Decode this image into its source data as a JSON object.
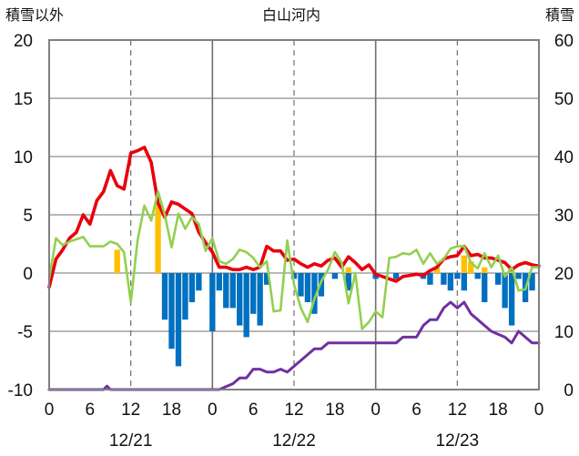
{
  "chart_data": {
    "type": "combo",
    "title": "白山河内",
    "y_left": {
      "label": "積雪以外",
      "range": [
        -10,
        20
      ],
      "ticks": [
        20,
        15,
        10,
        5,
        0,
        -5,
        -10
      ]
    },
    "y_right": {
      "label": "積雪",
      "range": [
        0,
        60
      ],
      "ticks": [
        60,
        50,
        40,
        30,
        20,
        10,
        0
      ]
    },
    "x": {
      "range_hours": [
        0,
        72
      ],
      "tick_labels": [
        "0",
        "6",
        "12",
        "18",
        "0",
        "6",
        "12",
        "18",
        "0",
        "6",
        "12",
        "18",
        "0"
      ],
      "dates": [
        {
          "label": "12/21",
          "center_hour": 12
        },
        {
          "label": "12/22",
          "center_hour": 36
        },
        {
          "label": "12/23",
          "center_hour": 60
        }
      ],
      "dashed_grid_hours": [
        12,
        36,
        60
      ],
      "solid_grid_hours": [
        24,
        48
      ]
    },
    "grid": true,
    "legend": "none",
    "colors": {
      "red_line": "#e8000b",
      "green_line": "#92d050",
      "purple_line": "#7030a0",
      "blue_bar": "#0070c0",
      "orange_bar": "#ffc000"
    },
    "series": [
      {
        "axis": "left",
        "type": "line",
        "color": "red",
        "points": [
          [
            0,
            -1.2
          ],
          [
            1,
            1.2
          ],
          [
            2,
            2
          ],
          [
            3,
            3
          ],
          [
            4,
            3.5
          ],
          [
            5,
            5
          ],
          [
            6,
            4.2
          ],
          [
            7,
            6.2
          ],
          [
            8,
            7
          ],
          [
            9,
            8.8
          ],
          [
            10,
            7.5
          ],
          [
            11,
            7.2
          ],
          [
            12,
            10.3
          ],
          [
            13,
            10.5
          ],
          [
            14,
            10.8
          ],
          [
            15,
            9.5
          ],
          [
            16,
            6
          ],
          [
            17,
            4.8
          ],
          [
            18,
            6.1
          ],
          [
            19,
            5.9
          ],
          [
            20,
            5.5
          ],
          [
            21,
            5.1
          ],
          [
            22,
            3.5
          ],
          [
            23,
            2.6
          ],
          [
            24,
            1.8
          ],
          [
            25,
            0.5
          ],
          [
            26,
            0.5
          ],
          [
            27,
            0.3
          ],
          [
            28,
            0.3
          ],
          [
            29,
            0.5
          ],
          [
            30,
            0.3
          ],
          [
            31,
            0.5
          ],
          [
            32,
            2.3
          ],
          [
            33,
            1.9
          ],
          [
            34,
            1.9
          ],
          [
            35,
            1.1
          ],
          [
            36,
            1.2
          ],
          [
            37,
            0.8
          ],
          [
            38,
            0.5
          ],
          [
            39,
            0.8
          ],
          [
            40,
            0.6
          ],
          [
            41,
            1.1
          ],
          [
            42,
            1.3
          ],
          [
            43,
            0.5
          ],
          [
            44,
            1.4
          ],
          [
            45,
            0.9
          ],
          [
            46,
            0.3
          ],
          [
            47,
            0.7
          ],
          [
            48,
            -0.1
          ],
          [
            49,
            -0.3
          ],
          [
            50,
            -0.5
          ],
          [
            51,
            -0.7
          ],
          [
            52,
            -0.3
          ],
          [
            53,
            -0.2
          ],
          [
            54,
            -0.1
          ],
          [
            55,
            -0.2
          ],
          [
            56,
            0.2
          ],
          [
            57,
            0.5
          ],
          [
            58,
            1.2
          ],
          [
            59,
            1.4
          ],
          [
            60,
            1.5
          ],
          [
            61,
            2.3
          ],
          [
            62,
            1.5
          ],
          [
            63,
            1.6
          ],
          [
            64,
            1.3
          ],
          [
            65,
            1.3
          ],
          [
            66,
            1.1
          ],
          [
            67,
            0.9
          ],
          [
            68,
            0.3
          ],
          [
            69,
            0.7
          ],
          [
            70,
            0.9
          ],
          [
            71,
            0.7
          ],
          [
            72,
            0.6
          ]
        ]
      },
      {
        "axis": "left",
        "type": "line",
        "color": "green",
        "points": [
          [
            0,
            -0.5
          ],
          [
            1,
            3
          ],
          [
            2,
            2.4
          ],
          [
            3,
            2.7
          ],
          [
            4,
            2.9
          ],
          [
            5,
            3.1
          ],
          [
            6,
            2.3
          ],
          [
            7,
            2.3
          ],
          [
            8,
            2.3
          ],
          [
            9,
            2.7
          ],
          [
            10,
            2.5
          ],
          [
            11,
            1.8
          ],
          [
            12,
            -2.5
          ],
          [
            13,
            2.8
          ],
          [
            14,
            5.8
          ],
          [
            15,
            4.5
          ],
          [
            16,
            7
          ],
          [
            17,
            5
          ],
          [
            18,
            2.2
          ],
          [
            19,
            5.1
          ],
          [
            20,
            3.8
          ],
          [
            21,
            4.8
          ],
          [
            22,
            4.2
          ],
          [
            23,
            1.9
          ],
          [
            24,
            3
          ],
          [
            25,
            1
          ],
          [
            26,
            0.8
          ],
          [
            27,
            1.2
          ],
          [
            28,
            2
          ],
          [
            29,
            1.8
          ],
          [
            30,
            1.3
          ],
          [
            31,
            0.5
          ],
          [
            32,
            1
          ],
          [
            33,
            -3.3
          ],
          [
            34,
            -3.2
          ],
          [
            35,
            2.8
          ],
          [
            36,
            -1
          ],
          [
            37,
            -3
          ],
          [
            38,
            -4.2
          ],
          [
            39,
            -2.2
          ],
          [
            40,
            -0.7
          ],
          [
            41,
            0.3
          ],
          [
            42,
            1.8
          ],
          [
            43,
            0.9
          ],
          [
            44,
            -2.6
          ],
          [
            45,
            0
          ],
          [
            46,
            -4.8
          ],
          [
            47,
            -4.2
          ],
          [
            48,
            -3.3
          ],
          [
            49,
            -3.8
          ],
          [
            50,
            1.3
          ],
          [
            51,
            1.4
          ],
          [
            52,
            1.7
          ],
          [
            53,
            1.6
          ],
          [
            54,
            2
          ],
          [
            55,
            0.8
          ],
          [
            56,
            1.7
          ],
          [
            57,
            0.8
          ],
          [
            58,
            1.2
          ],
          [
            59,
            2.1
          ],
          [
            60,
            2.3
          ],
          [
            61,
            2.3
          ],
          [
            62,
            0.9
          ],
          [
            63,
            0.4
          ],
          [
            64,
            1.7
          ],
          [
            65,
            0.5
          ],
          [
            66,
            1.5
          ],
          [
            67,
            -0.3
          ],
          [
            68,
            0.5
          ],
          [
            69,
            -1.5
          ],
          [
            70,
            -1.4
          ],
          [
            71,
            0.5
          ],
          [
            72,
            0.5
          ]
        ]
      },
      {
        "axis": "right",
        "type": "line",
        "color": "purple",
        "points": [
          [
            0,
            0
          ],
          [
            8,
            0
          ],
          [
            8.5,
            0.6
          ],
          [
            9,
            0
          ],
          [
            12,
            0
          ],
          [
            24,
            0
          ],
          [
            25,
            0
          ],
          [
            26,
            0.5
          ],
          [
            27,
            1
          ],
          [
            28,
            2
          ],
          [
            29,
            2
          ],
          [
            30,
            3.5
          ],
          [
            31,
            3.5
          ],
          [
            32,
            3
          ],
          [
            33,
            3
          ],
          [
            34,
            3.5
          ],
          [
            35,
            3
          ],
          [
            36,
            4
          ],
          [
            37,
            5
          ],
          [
            38,
            6
          ],
          [
            39,
            7
          ],
          [
            40,
            7
          ],
          [
            41,
            8
          ],
          [
            42,
            8
          ],
          [
            43,
            8
          ],
          [
            44,
            8
          ],
          [
            45,
            8
          ],
          [
            46,
            8
          ],
          [
            47,
            8
          ],
          [
            48,
            8
          ],
          [
            49,
            8
          ],
          [
            50,
            8
          ],
          [
            51,
            8
          ],
          [
            52,
            9
          ],
          [
            53,
            9
          ],
          [
            54,
            9
          ],
          [
            55,
            11
          ],
          [
            56,
            12
          ],
          [
            57,
            12
          ],
          [
            58,
            14
          ],
          [
            59,
            15
          ],
          [
            60,
            14
          ],
          [
            61,
            15
          ],
          [
            62,
            13
          ],
          [
            63,
            12
          ],
          [
            64,
            11
          ],
          [
            65,
            10
          ],
          [
            66,
            9.5
          ],
          [
            67,
            9
          ],
          [
            68,
            8
          ],
          [
            69,
            10
          ],
          [
            70,
            9
          ],
          [
            71,
            8
          ],
          [
            72,
            8
          ]
        ]
      },
      {
        "axis": "left",
        "type": "bar",
        "color": "blue",
        "width_hours": 0.85,
        "values": [
          [
            17,
            -4
          ],
          [
            18,
            -6.5
          ],
          [
            19,
            -8
          ],
          [
            20,
            -4
          ],
          [
            21,
            -2.5
          ],
          [
            22,
            -1.5
          ],
          [
            24,
            -5
          ],
          [
            25,
            -1.5
          ],
          [
            26,
            -3
          ],
          [
            27,
            -3
          ],
          [
            28,
            -4.5
          ],
          [
            29,
            -5.5
          ],
          [
            30,
            -3.5
          ],
          [
            31,
            -4.5
          ],
          [
            32,
            -1
          ],
          [
            36,
            -0.5
          ],
          [
            37,
            -2
          ],
          [
            38,
            -2.5
          ],
          [
            39,
            -3.5
          ],
          [
            40,
            -2
          ],
          [
            42,
            -0.5
          ],
          [
            44,
            -1.5
          ],
          [
            48,
            -0.5
          ],
          [
            51,
            -0.5
          ],
          [
            55,
            -0.5
          ],
          [
            56,
            -1
          ],
          [
            58,
            -1
          ],
          [
            59,
            -1.5
          ],
          [
            60,
            -0.5
          ],
          [
            61,
            -1.5
          ],
          [
            63,
            -0.5
          ],
          [
            64,
            -2.5
          ],
          [
            66,
            -1
          ],
          [
            67,
            -3
          ],
          [
            68,
            -4.5
          ],
          [
            69,
            -0.5
          ],
          [
            70,
            -2.5
          ],
          [
            71,
            -1.5
          ]
        ]
      },
      {
        "axis": "left",
        "type": "bar",
        "color": "orange",
        "width_hours": 0.85,
        "values": [
          [
            10,
            2
          ],
          [
            16,
            6
          ],
          [
            44,
            0.5
          ],
          [
            57,
            0.5
          ],
          [
            61,
            1.5
          ],
          [
            62,
            1
          ],
          [
            64,
            0.5
          ],
          [
            68,
            0.5
          ]
        ]
      }
    ]
  }
}
